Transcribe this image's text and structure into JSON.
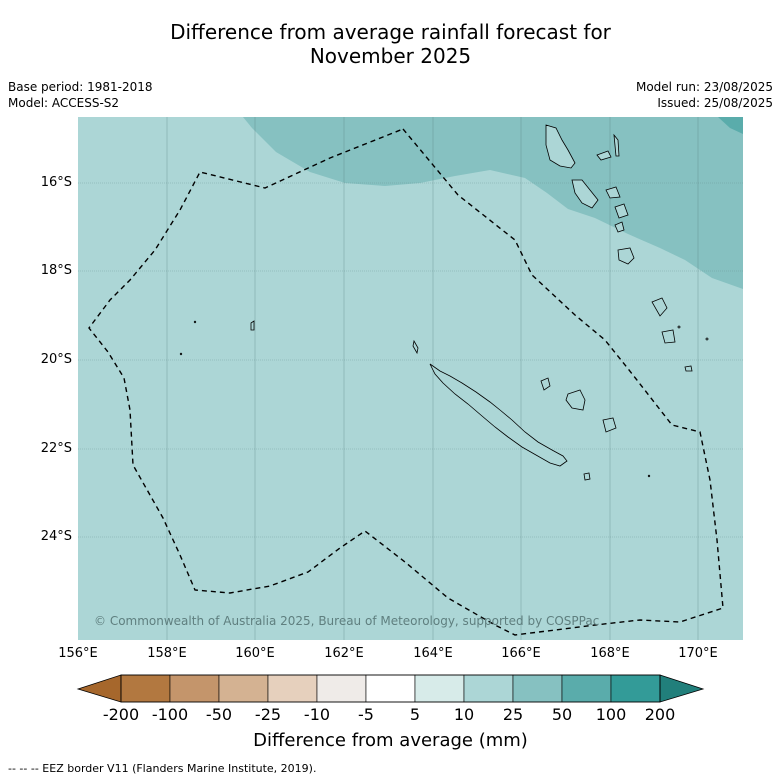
{
  "title_line1": "Difference from average rainfall forecast for",
  "title_line2": "November 2025",
  "meta_left": [
    "Base period: 1981-2018",
    "Model: ACCESS-S2"
  ],
  "meta_right": [
    "Model run: 23/08/2025",
    "Issued: 25/08/2025"
  ],
  "copyright": "© Commonwealth of Australia 2025, Bureau of Meteorology, supported by COSPPac",
  "lat_labels": [
    "16°S",
    "18°S",
    "20°S",
    "22°S",
    "24°S"
  ],
  "lon_labels": [
    "156°E",
    "158°E",
    "160°E",
    "162°E",
    "164°E",
    "166°E",
    "168°E",
    "170°E"
  ],
  "colorbar": {
    "labels": [
      "-200",
      "-100",
      "-50",
      "-25",
      "-10",
      "-5",
      "5",
      "10",
      "25",
      "50",
      "100",
      "200"
    ],
    "colors": [
      "#a6672c",
      "#b27840",
      "#c4956b",
      "#d4b292",
      "#e6d0bd",
      "#efebe8",
      "#ffffff",
      "#d7ebe9",
      "#acd6d6",
      "#86c1c1",
      "#5aacab",
      "#339b98",
      "#217f7b"
    ],
    "title": "Difference from average (mm)"
  },
  "map_colors": {
    "band_10_25": "#acd6d6",
    "band_25_50": "#86c1c1",
    "band_50_100": "#5aacab"
  },
  "footnote": "-- -- -- EEZ border V11 (Flanders Marine Institute, 2019)."
}
